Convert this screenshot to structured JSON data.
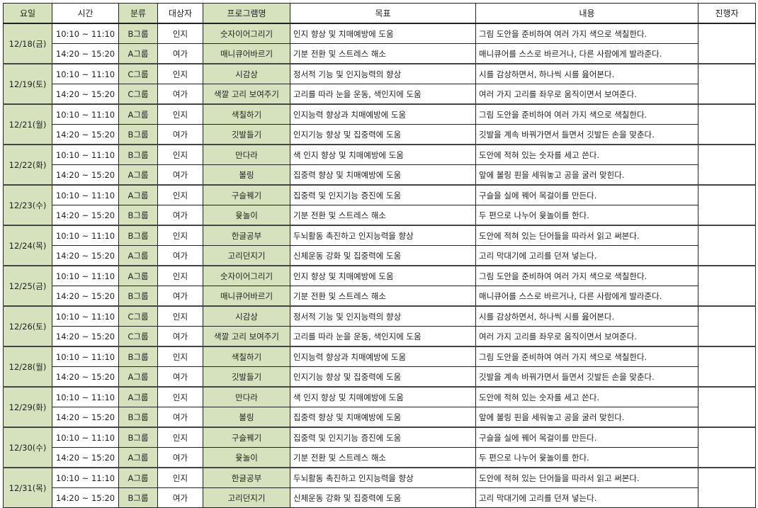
{
  "headers": [
    "요일",
    "시간",
    "분류",
    "대상자",
    "프로그램명",
    "목표",
    "내용",
    "진행자"
  ],
  "colors": {
    "header_green": "#d5e2bd"
  },
  "days": [
    {
      "date": "12/18(금)",
      "rows": [
        {
          "time": "10:10 ~ 11:10",
          "group": "B그룹",
          "target": "인지",
          "program": "숫자이어그리기",
          "goal": "인지 향상 및 치매예방에 도움",
          "content": "그림 도안을 준비하여 여러 가지 색으로 색칠한다."
        },
        {
          "time": "14:20 ~ 15:20",
          "group": "A그룹",
          "target": "여가",
          "program": "매니큐어바르기",
          "goal": "기분 전환 및 스트레스 해소",
          "content": "매니큐어를 스스로 바르거나, 다른 사람에게 발라준다."
        }
      ]
    },
    {
      "date": "12/19(토)",
      "rows": [
        {
          "time": "10:10 ~ 11:10",
          "group": "C그룹",
          "target": "인지",
          "program": "시감상",
          "goal": "정서적 기능 및 인지능력의 향상",
          "content": "시를 감상하면서, 하나씩 시를 읊어본다."
        },
        {
          "time": "14:20 ~ 15:20",
          "group": "C그룹",
          "target": "여가",
          "program": "색깔 고리 보여주기",
          "goal": "고리를 따라 눈을 운동, 색인지에 도움",
          "content": "여러 가지 고리를 좌우로 움직이면서 보여준다."
        }
      ]
    },
    {
      "date": "12/21(월)",
      "rows": [
        {
          "time": "10:10 ~ 11:10",
          "group": "A그룹",
          "target": "인지",
          "program": "색칠하기",
          "goal": "인지능력 향상과 치매예방에 도움",
          "content": "그림 도안을 준비하여 여러 가지 색으로 색칠한다."
        },
        {
          "time": "14:20 ~ 15:20",
          "group": "B그룹",
          "target": "여가",
          "program": "깃발들기",
          "goal": "인지기능 향상 및 집중력에 도움",
          "content": "깃발을 계속 바꿔가면서 들면서 깃발든 손을 맞춘다."
        }
      ]
    },
    {
      "date": "12/22(화)",
      "rows": [
        {
          "time": "10:10 ~ 11:10",
          "group": "B그룹",
          "target": "인지",
          "program": "만다라",
          "goal": "색 인지 향상 및 치매예방에 도움",
          "content": "도안에 적혀 있는 숫자를 세고 쓴다."
        },
        {
          "time": "14:20 ~ 15:20",
          "group": "A그룹",
          "target": "여가",
          "program": "볼링",
          "goal": "집중력 향상 및 치매예방에 도움",
          "content": "앞에 볼링 핀을 세워놓고 공을 굴러 맞힌다."
        }
      ]
    },
    {
      "date": "12/23(수)",
      "rows": [
        {
          "time": "10:10 ~ 11:10",
          "group": "A그룹",
          "target": "인지",
          "program": "구슬꿰기",
          "goal": "집중력 및 인지기능 증진에 도움",
          "content": "구슬을 실에 꿰어 목걸이를 만든다."
        },
        {
          "time": "14:20 ~ 15:20",
          "group": "B그룹",
          "target": "여가",
          "program": "윷놀이",
          "goal": "기분 전환 및 스트레스 해소",
          "content": "두 편으로 나누어 윷놀이를 한다."
        }
      ]
    },
    {
      "date": "12/24(목)",
      "rows": [
        {
          "time": "10:10 ~ 11:10",
          "group": "B그룹",
          "target": "인지",
          "program": "한글공부",
          "goal": "두뇌활동 촉진하고 인지능력을 향상",
          "content": "도안에 적혀 있는 단어들을 따라서 읽고 써본다."
        },
        {
          "time": "14:20 ~ 15:20",
          "group": "A그룹",
          "target": "여가",
          "program": "고리던지기",
          "goal": "신체운동 강화 및 집중력에 도움",
          "content": "고리 막대기에 고리를 던져 넣는다."
        }
      ]
    },
    {
      "date": "12/25(금)",
      "rows": [
        {
          "time": "10:10 ~ 11:10",
          "group": "A그룹",
          "target": "인지",
          "program": "숫자이어그리기",
          "goal": "인지 향상 및 치매예방에 도움",
          "content": "그림 도안을 준비하여 여러 가지 색으로 색칠한다."
        },
        {
          "time": "14:20 ~ 15:20",
          "group": "B그룹",
          "target": "여가",
          "program": "매니큐어바르기",
          "goal": "기분 전환 및 스트레스 해소",
          "content": "매니큐어를 스스로 바르거나, 다른 사람에게 발라준다."
        }
      ]
    },
    {
      "date": "12/26(토)",
      "rows": [
        {
          "time": "10:10 ~ 11:10",
          "group": "C그룹",
          "target": "인지",
          "program": "시감상",
          "goal": "정서적 기능 및 인지능력의 향상",
          "content": "시를 감상하면서, 하나씩 시를 읊어본다."
        },
        {
          "time": "14:20 ~ 15:20",
          "group": "C그룹",
          "target": "여가",
          "program": "색깔 고리 보여주기",
          "goal": "고리를 따라 눈을 운동, 색인지에 도움",
          "content": "여러 가지 고리를 좌우로 움직이면서 보여준다."
        }
      ]
    },
    {
      "date": "12/28(월)",
      "rows": [
        {
          "time": "10:10 ~ 11:10",
          "group": "B그룹",
          "target": "인지",
          "program": "색칠하기",
          "goal": "인지능력 향상과 치매예방에 도움",
          "content": "그림 도안을 준비하여 여러 가지 색으로 색칠한다."
        },
        {
          "time": "14:20 ~ 15:20",
          "group": "A그룹",
          "target": "여가",
          "program": "깃발들기",
          "goal": "인지기능 향상 및 집중력에 도움",
          "content": "깃발을 계속 바꿔가면서 들면서 깃발든 손을 맞춘다."
        }
      ]
    },
    {
      "date": "12/29(화)",
      "rows": [
        {
          "time": "10:10 ~ 11:10",
          "group": "A그룹",
          "target": "인지",
          "program": "만다라",
          "goal": "색 인지 향상 및 치매예방에 도움",
          "content": "도안에 적혀 있는 숫자를 세고 쓴다."
        },
        {
          "time": "14:20 ~ 15:20",
          "group": "B그룹",
          "target": "여가",
          "program": "볼링",
          "goal": "집중력 향상 및 치매예방에 도움",
          "content": "앞에 볼링 핀을 세워놓고 공을 굴러 맞힌다."
        }
      ]
    },
    {
      "date": "12/30(수)",
      "rows": [
        {
          "time": "10:10 ~ 11:10",
          "group": "B그룹",
          "target": "인지",
          "program": "구슬꿰기",
          "goal": "집중력 및 인지기능 증진에 도움",
          "content": "구슬을 실에 꿰어 목걸이를 만든다."
        },
        {
          "time": "14:20 ~ 15:20",
          "group": "A그룹",
          "target": "여가",
          "program": "윷놀이",
          "goal": "기분 전환 및 스트레스 해소",
          "content": "두 편으로 나누어 윷놀이를 한다."
        }
      ]
    },
    {
      "date": "12/31(목)",
      "rows": [
        {
          "time": "10:10 ~ 11:10",
          "group": "A그룹",
          "target": "인지",
          "program": "한글공부",
          "goal": "두뇌활동 촉진하고 인지능력을 향상",
          "content": "도안에 적혀 있는 단어들을 따라서 읽고 써본다."
        },
        {
          "time": "14:20 ~ 15:20",
          "group": "B그룹",
          "target": "여가",
          "program": "고리던지기",
          "goal": "신체운동 강화 및 집중력에 도움",
          "content": "고리 막대기에 고리를 던져 넣는다."
        }
      ]
    }
  ]
}
